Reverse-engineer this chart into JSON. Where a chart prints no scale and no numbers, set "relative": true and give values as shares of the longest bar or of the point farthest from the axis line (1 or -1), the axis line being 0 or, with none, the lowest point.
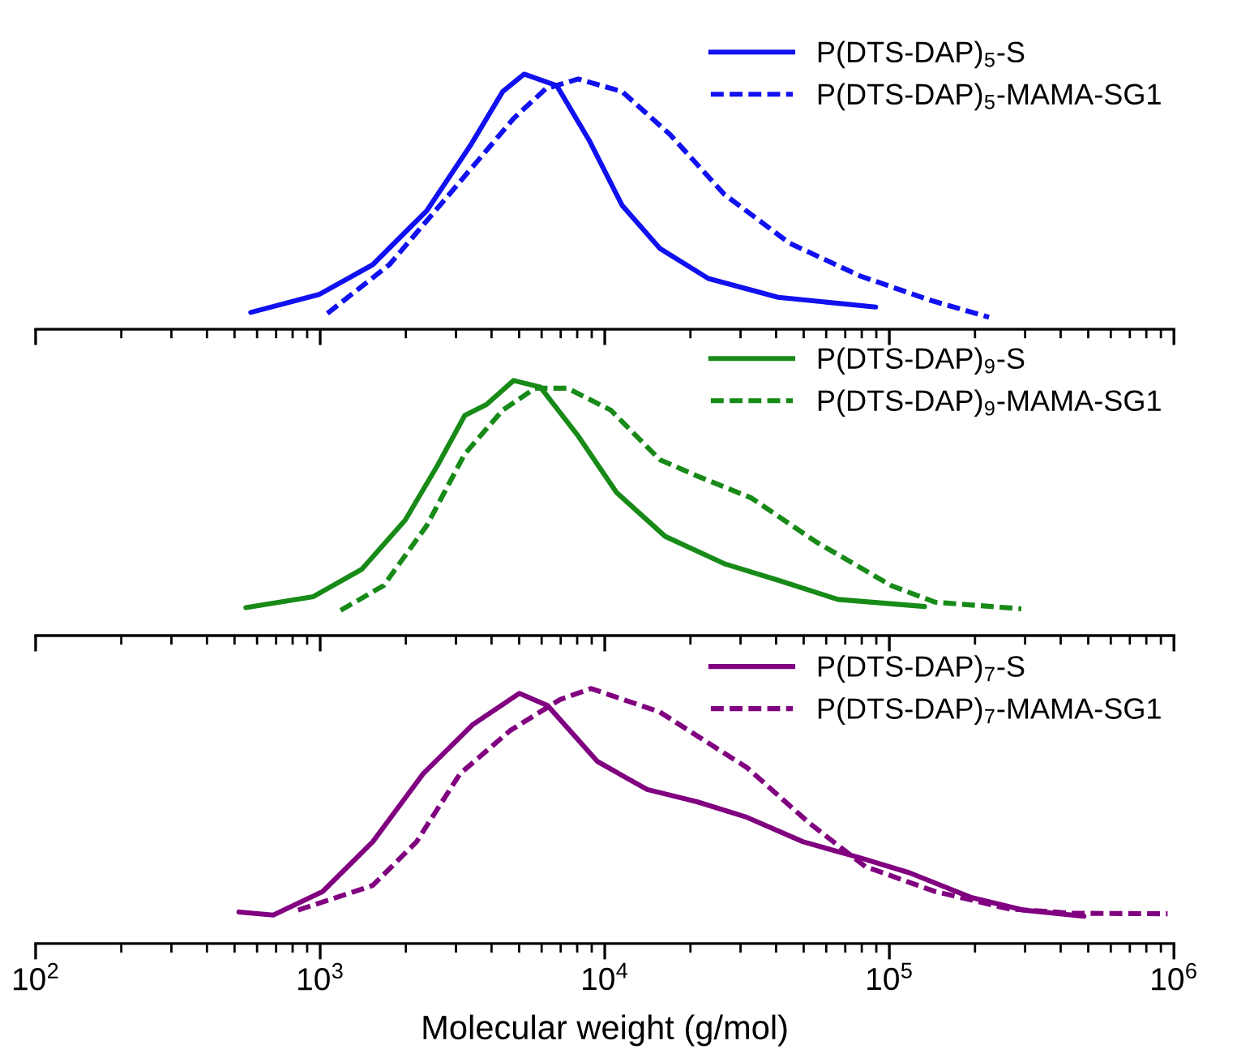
{
  "chart_data": [
    {
      "type": "line",
      "relative": true,
      "log": "x",
      "xlim": [
        100,
        1000000
      ],
      "xticks": [
        {
          "value": 100,
          "label": null
        },
        {
          "value": 1000,
          "label": null
        },
        {
          "value": 10000,
          "label": null
        },
        {
          "value": 100000,
          "label": null
        },
        {
          "value": 1000000,
          "label": null
        }
      ],
      "tick_labels": false,
      "legend": "top right",
      "grid": false,
      "series": [
        {
          "name": "P(DTS-DAP)$_{5}$-S",
          "color": "#1010f0",
          "line_style": "solid",
          "x": [
            570,
            990,
            1530,
            2370,
            3370,
            4380,
            5210,
            6780,
            8810,
            11500,
            15600,
            23100,
            40700,
            89500
          ],
          "values": [
            0.066,
            0.136,
            0.253,
            0.465,
            0.72,
            0.932,
            1.0,
            0.955,
            0.741,
            0.486,
            0.317,
            0.199,
            0.125,
            0.087
          ]
        },
        {
          "name": "P(DTS-DAP)$_{5}$-MAMA-SG1",
          "color": "#1010f0",
          "line_style": "dashed",
          "x": [
            1060,
            1750,
            2950,
            4780,
            6210,
            8070,
            11500,
            17000,
            26300,
            44500,
            78500,
            138000,
            224000
          ],
          "values": [
            0.062,
            0.253,
            0.55,
            0.826,
            0.943,
            0.981,
            0.932,
            0.762,
            0.529,
            0.338,
            0.21,
            0.115,
            0.047
          ]
        }
      ]
    },
    {
      "type": "line",
      "relative": true,
      "log": "x",
      "xlim": [
        100,
        1000000
      ],
      "xticks": [
        {
          "value": 100,
          "label": null
        },
        {
          "value": 1000,
          "label": null
        },
        {
          "value": 10000,
          "label": null
        },
        {
          "value": 100000,
          "label": null
        },
        {
          "value": 1000000,
          "label": null
        }
      ],
      "tick_labels": false,
      "legend": "top right",
      "grid": false,
      "series": [
        {
          "name": "P(DTS-DAP)$_{9}$-S",
          "color": "#178a17",
          "line_style": "solid",
          "x": [
            548,
            946,
            1400,
            1990,
            2590,
            3220,
            3840,
            4780,
            5940,
            8070,
            11000,
            16300,
            26300,
            40700,
            65900,
            133000
          ],
          "values": [
            0.11,
            0.153,
            0.26,
            0.453,
            0.669,
            0.863,
            0.906,
            1.0,
            0.974,
            0.782,
            0.561,
            0.389,
            0.282,
            0.217,
            0.142,
            0.114
          ]
        },
        {
          "name": "P(DTS-DAP)$_{9}$-MAMA-SG1",
          "color": "#178a17",
          "line_style": "dashed",
          "x": [
            1180,
            1670,
            2370,
            3220,
            4380,
            5690,
            7400,
            10500,
            15600,
            21100,
            32700,
            55200,
            102000,
            145000,
            291000
          ],
          "values": [
            0.099,
            0.196,
            0.432,
            0.712,
            0.884,
            0.97,
            0.97,
            0.884,
            0.69,
            0.626,
            0.54,
            0.368,
            0.195,
            0.131,
            0.105
          ]
        }
      ]
    },
    {
      "type": "line",
      "relative": true,
      "log": "x",
      "xlim": [
        100,
        1000000
      ],
      "xticks": [
        {
          "value": 100,
          "label": "10$^{2}$"
        },
        {
          "value": 1000,
          "label": "10$^{3}$"
        },
        {
          "value": 10000,
          "label": "10$^{4}$"
        },
        {
          "value": 100000,
          "label": "10$^{5}$"
        },
        {
          "value": 1000000,
          "label": "10$^{6}$"
        }
      ],
      "tick_labels": "x",
      "legend": "top right",
      "grid": false,
      "xlabel": "Molecular weight (g/mol)",
      "series": [
        {
          "name": "P(DTS-DAP)$_{7}$-S",
          "color": "#800080",
          "line_style": "solid",
          "x": [
            518,
            684,
            1020,
            1530,
            2300,
            3440,
            5010,
            6300,
            9420,
            14100,
            21100,
            31600,
            49800,
            78500,
            118000,
            195000,
            297000,
            483000
          ],
          "values": [
            0.124,
            0.112,
            0.204,
            0.399,
            0.666,
            0.859,
            0.981,
            0.933,
            0.714,
            0.604,
            0.556,
            0.495,
            0.399,
            0.337,
            0.277,
            0.18,
            0.131,
            0.107
          ]
        },
        {
          "name": "P(DTS-DAP)$_{7}$-MAMA-SG1",
          "color": "#800080",
          "line_style": "dashed",
          "x": [
            836,
            1530,
            2180,
            3100,
            4650,
            6970,
            8950,
            15600,
            31600,
            52400,
            82400,
            144000,
            263000,
            437000,
            950000
          ],
          "values": [
            0.131,
            0.228,
            0.399,
            0.666,
            0.835,
            0.957,
            1.0,
            0.908,
            0.69,
            0.472,
            0.302,
            0.205,
            0.136,
            0.119,
            0.117
          ]
        }
      ]
    }
  ]
}
